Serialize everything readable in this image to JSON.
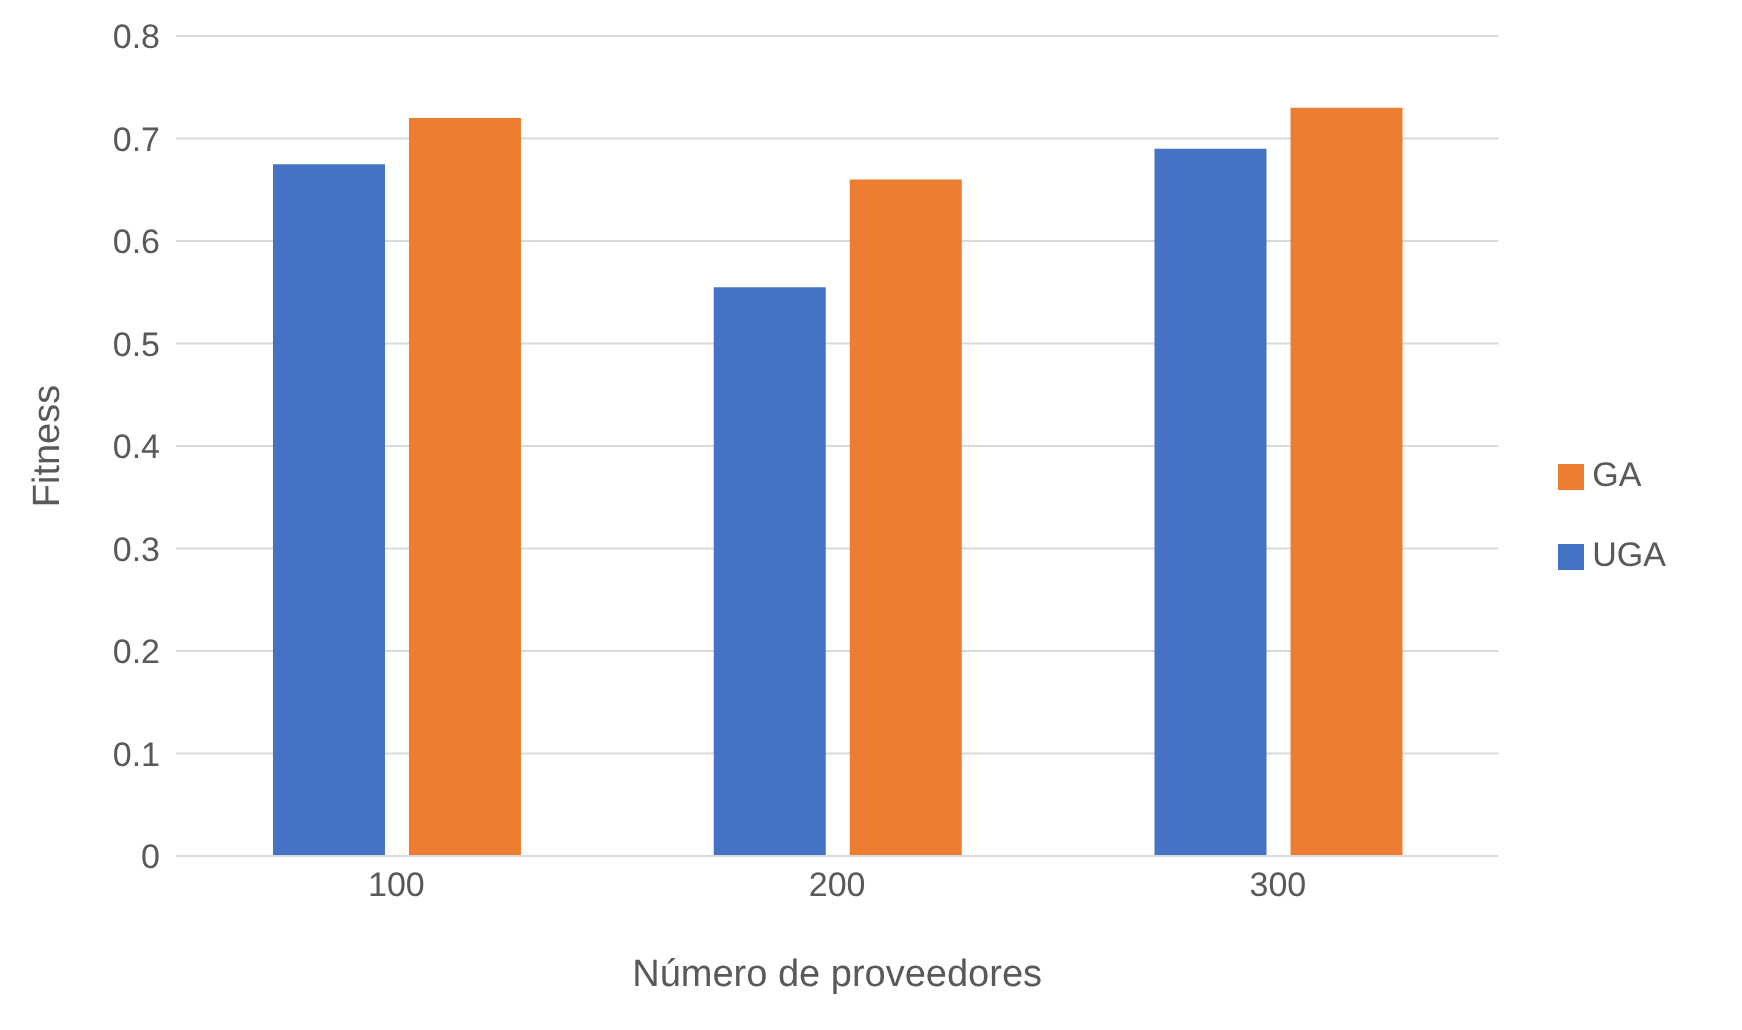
{
  "chart_data": {
    "type": "bar",
    "xlabel": "Número de proveedores",
    "ylabel": "Fitness",
    "categories": [
      "100",
      "200",
      "300"
    ],
    "series": [
      {
        "name": "UGA",
        "color": "#4472c4",
        "values": [
          0.675,
          0.555,
          0.69
        ]
      },
      {
        "name": "GA",
        "color": "#ed7d31",
        "values": [
          0.72,
          0.66,
          0.73
        ]
      }
    ],
    "ylim": [
      0,
      0.8
    ],
    "yticks": [
      0,
      0.1,
      0.2,
      0.3,
      0.4,
      0.5,
      0.6,
      0.7,
      0.8
    ],
    "grid": "y",
    "legend": "right"
  }
}
